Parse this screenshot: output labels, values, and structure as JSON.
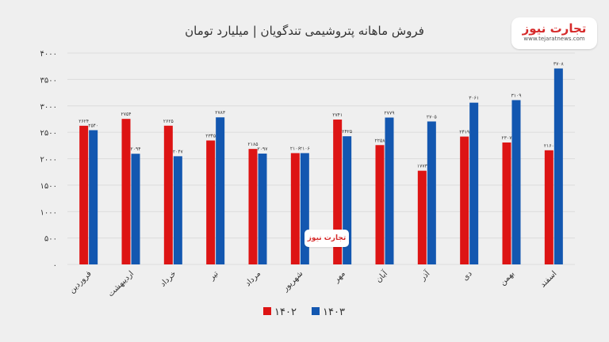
{
  "title": "فروش ماهانه پتروشیمی تندگویان | میلیارد تومان",
  "logo": {
    "name": "تجارت نیوز",
    "url": "www.tejaratnews.com"
  },
  "watermark": "تجارت نیوز",
  "colors": {
    "series_1402": "#dd1414",
    "series_1403": "#1357b0",
    "background": "#efefef",
    "grid": "#dcdcdc"
  },
  "chart_data": {
    "type": "bar",
    "categories": [
      "فروردین",
      "اردیبهشت",
      "خرداد",
      "تیر",
      "مرداد",
      "شهریور",
      "مهر",
      "آبان",
      "آذر",
      "دی",
      "بهمن",
      "اسفند"
    ],
    "series": [
      {
        "name": "۱۴۰۲",
        "values": [
          2624,
          2754,
          2625,
          2345,
          2185,
          2106,
          2741,
          2258,
          1773,
          2419,
          2307,
          2160
        ]
      },
      {
        "name": "۱۴۰۳",
        "values": [
          2540,
          2094,
          2047,
          2783,
          2097,
          2106,
          2425,
          2779,
          2705,
          3061,
          3109,
          3708
        ]
      }
    ],
    "value_labels": [
      [
        "۲۶۲۴",
        "۲۷۵۴",
        "۲۶۲۵",
        "۲۳۴۵",
        "۲۱۸۵",
        "۲۱۰۶",
        "۲۷۴۱",
        "۲۲۵۸",
        "۱۷۷۳",
        "۲۴۱۹",
        "۲۳۰۷",
        "۲۱۶۰"
      ],
      [
        "۲۵۴۰",
        "۲۰۹۴",
        "۲۰۴۷",
        "۲۷۸۳",
        "۲۰۹۷",
        "۲۱۰۶",
        "۲۴۲۵",
        "۲۷۷۹",
        "۲۷۰۵",
        "۳۰۶۱",
        "۳۱۰۹",
        "۳۷۰۸"
      ]
    ],
    "yticks": [
      0,
      500,
      1000,
      1500,
      2000,
      2500,
      3000,
      3500,
      4000
    ],
    "ytick_labels": [
      "۰",
      "۵۰۰",
      "۱۰۰۰",
      "۱۵۰۰",
      "۲۰۰۰",
      "۲۵۰۰",
      "۳۰۰۰",
      "۳۵۰۰",
      "۴۰۰۰"
    ],
    "ylim": [
      0,
      4000
    ],
    "grid": true,
    "legend_position": "bottom-center"
  }
}
